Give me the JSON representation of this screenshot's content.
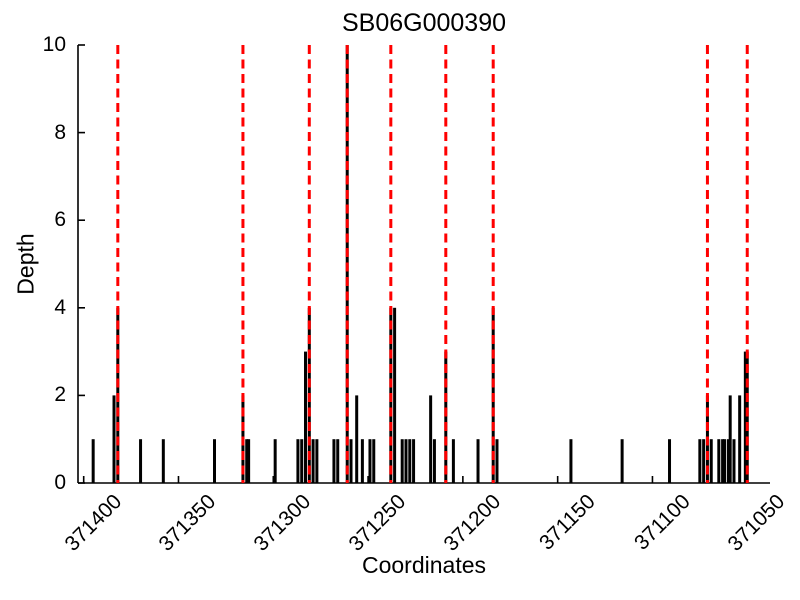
{
  "chart_data": {
    "type": "bar",
    "title": "SB06G000390",
    "xlabel": "Coordinates",
    "ylabel": "Depth",
    "x_axis_inverted": true,
    "xlim": [
      371403,
      371038
    ],
    "ylim": [
      0,
      10
    ],
    "xticks": [
      371400,
      371350,
      371300,
      371250,
      371200,
      371150,
      371100,
      371050
    ],
    "yticks": [
      0,
      2,
      4,
      6,
      8,
      10
    ],
    "grid": false,
    "legend": "none",
    "bar_color": "#000000",
    "vline_color": "#ff0000",
    "vline_style": "dashed",
    "red_dashed_lines": [
      371382,
      371316,
      371281,
      371261,
      371238,
      371209,
      371184,
      371071,
      371050
    ],
    "bars": [
      {
        "x": 371395,
        "depth": 1
      },
      {
        "x": 371384,
        "depth": 2
      },
      {
        "x": 371382,
        "depth": 4
      },
      {
        "x": 371370,
        "depth": 1
      },
      {
        "x": 371358,
        "depth": 1
      },
      {
        "x": 371331,
        "depth": 1
      },
      {
        "x": 371316,
        "depth": 2
      },
      {
        "x": 371314,
        "depth": 1
      },
      {
        "x": 371313,
        "depth": 1
      },
      {
        "x": 371299,
        "depth": 1
      },
      {
        "x": 371287,
        "depth": 1
      },
      {
        "x": 371285,
        "depth": 1
      },
      {
        "x": 371283,
        "depth": 3
      },
      {
        "x": 371281,
        "depth": 4
      },
      {
        "x": 371279,
        "depth": 1
      },
      {
        "x": 371277,
        "depth": 1
      },
      {
        "x": 371268,
        "depth": 1
      },
      {
        "x": 371266,
        "depth": 1
      },
      {
        "x": 371261,
        "depth": 10
      },
      {
        "x": 371259,
        "depth": 1
      },
      {
        "x": 371256,
        "depth": 2
      },
      {
        "x": 371253,
        "depth": 1
      },
      {
        "x": 371249,
        "depth": 1
      },
      {
        "x": 371247,
        "depth": 1
      },
      {
        "x": 371238,
        "depth": 4
      },
      {
        "x": 371236,
        "depth": 4
      },
      {
        "x": 371232,
        "depth": 1
      },
      {
        "x": 371230,
        "depth": 1
      },
      {
        "x": 371228,
        "depth": 1
      },
      {
        "x": 371226,
        "depth": 1
      },
      {
        "x": 371217,
        "depth": 2
      },
      {
        "x": 371215,
        "depth": 1
      },
      {
        "x": 371209,
        "depth": 3
      },
      {
        "x": 371205,
        "depth": 1
      },
      {
        "x": 371192,
        "depth": 1
      },
      {
        "x": 371184,
        "depth": 4
      },
      {
        "x": 371182,
        "depth": 1
      },
      {
        "x": 371143,
        "depth": 1
      },
      {
        "x": 371116,
        "depth": 1
      },
      {
        "x": 371091,
        "depth": 1
      },
      {
        "x": 371075,
        "depth": 1
      },
      {
        "x": 371073,
        "depth": 1
      },
      {
        "x": 371071,
        "depth": 2
      },
      {
        "x": 371069,
        "depth": 1
      },
      {
        "x": 371065,
        "depth": 1
      },
      {
        "x": 371063,
        "depth": 1
      },
      {
        "x": 371062,
        "depth": 1
      },
      {
        "x": 371060,
        "depth": 1
      },
      {
        "x": 371059,
        "depth": 2
      },
      {
        "x": 371057,
        "depth": 1
      },
      {
        "x": 371054,
        "depth": 2
      },
      {
        "x": 371051,
        "depth": 3
      },
      {
        "x": 371050,
        "depth": 3
      }
    ]
  }
}
